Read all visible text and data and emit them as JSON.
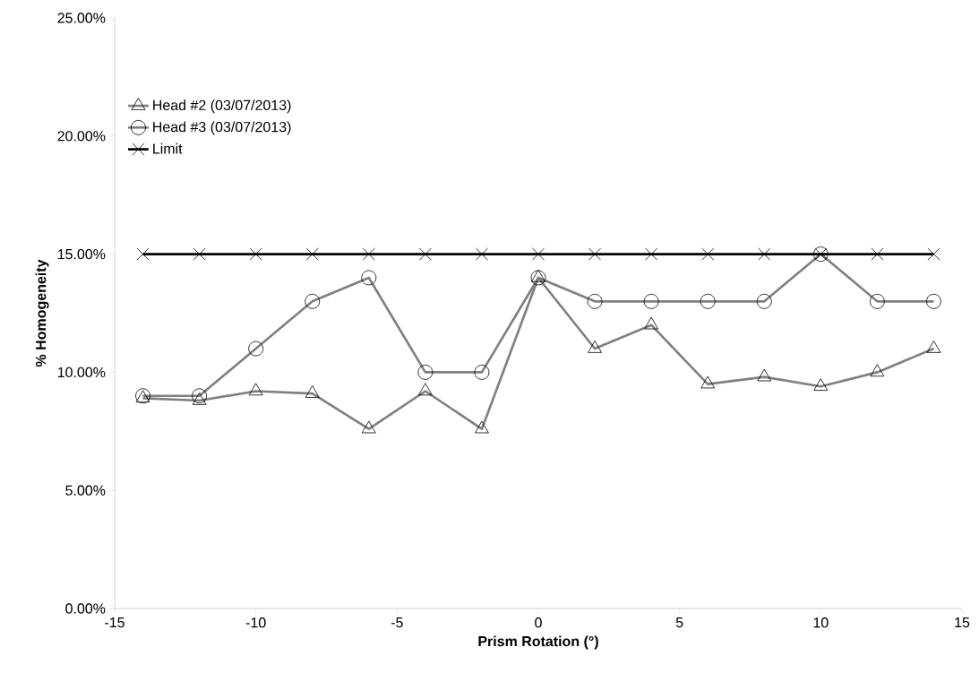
{
  "chart_data": {
    "type": "line",
    "xlabel": "Prism Rotation (°)",
    "ylabel": "% Homogeneity",
    "x": [
      -14,
      -12,
      -10,
      -8,
      -6,
      -4,
      -2,
      0,
      2,
      4,
      6,
      8,
      10,
      12,
      14
    ],
    "series": [
      {
        "name": "Head #2 (03/07/2013)",
        "color": "#808080",
        "marker": "triangle",
        "values": [
          8.9,
          8.8,
          9.2,
          9.1,
          7.6,
          9.2,
          7.6,
          14.0,
          11.0,
          12.0,
          9.5,
          9.8,
          9.4,
          10.0,
          11.0
        ]
      },
      {
        "name": "Head #3 (03/07/2013)",
        "color": "#808080",
        "marker": "circle",
        "values": [
          9,
          9,
          11,
          13,
          14,
          10,
          10,
          14,
          13,
          13,
          13,
          13,
          15,
          13,
          13
        ]
      },
      {
        "name": "Limit",
        "color": "#000000",
        "marker": "cross",
        "values": [
          15,
          15,
          15,
          15,
          15,
          15,
          15,
          15,
          15,
          15,
          15,
          15,
          15,
          15,
          15
        ]
      }
    ],
    "xlim": [
      -15,
      15
    ],
    "xticks": [
      -15,
      -10,
      -5,
      0,
      5,
      10,
      15
    ],
    "ylim": [
      0,
      25
    ],
    "yticks": [
      {
        "value": 0,
        "label": "0.00%"
      },
      {
        "value": 5,
        "label": "5.00%"
      },
      {
        "value": 10,
        "label": "10.00%"
      },
      {
        "value": 15,
        "label": "15.00%"
      },
      {
        "value": 20,
        "label": "20.00%"
      },
      {
        "value": 25,
        "label": "25.00%"
      }
    ],
    "grid": false,
    "legend": "top left",
    "line_style": "solid"
  }
}
